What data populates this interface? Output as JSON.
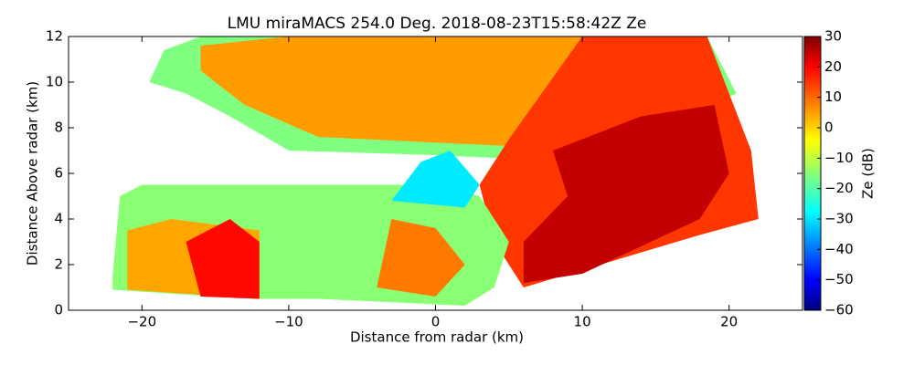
{
  "chart_data": {
    "type": "heatmap",
    "title": "LMU miraMACS 254.0 Deg. 2018-08-23T15:58:42Z  Ze",
    "x_label": "Distance from radar (km)",
    "y_label": "Distance Above radar  (km)",
    "colorbar_label": "Ze (dB)",
    "colormap": "jet",
    "xlim": [
      -25,
      25
    ],
    "xticks": [
      {
        "value": -20,
        "label": "−20"
      },
      {
        "value": -10,
        "label": "−10"
      },
      0,
      10,
      20
    ],
    "ylim": [
      0,
      12
    ],
    "yticks": [
      0,
      2,
      4,
      6,
      8,
      10,
      12
    ],
    "clim": [
      -60,
      30
    ],
    "cticks": [
      {
        "value": -60,
        "label": "−60"
      },
      {
        "value": -50,
        "label": "−50"
      },
      {
        "value": -40,
        "label": "−40"
      },
      {
        "value": -30,
        "label": "−30"
      },
      {
        "value": -20,
        "label": "−20"
      },
      {
        "value": -10,
        "label": "−10"
      },
      0,
      10,
      20,
      30
    ],
    "regions": [
      {
        "value": -15,
        "points": [
          [
            -19.5,
            10
          ],
          [
            -18.5,
            11.4
          ],
          [
            -16,
            12
          ],
          [
            18.5,
            12
          ],
          [
            20.5,
            9.5
          ],
          [
            10,
            6.5
          ],
          [
            0,
            6.8
          ],
          [
            -10,
            7
          ],
          [
            -14,
            8.5
          ],
          [
            -17,
            9.5
          ]
        ]
      },
      {
        "value": 5,
        "points": [
          [
            -16,
            11.6
          ],
          [
            -10,
            12
          ],
          [
            16,
            12
          ],
          [
            14,
            8
          ],
          [
            5,
            7.2
          ],
          [
            -8,
            7.6
          ],
          [
            -13,
            9
          ],
          [
            -16,
            10.5
          ]
        ]
      },
      {
        "value": 14,
        "points": [
          [
            5,
            7.5
          ],
          [
            10,
            12
          ],
          [
            18.5,
            12
          ],
          [
            21.5,
            7
          ],
          [
            22,
            4
          ],
          [
            18,
            3.3
          ],
          [
            6,
            1
          ],
          [
            4,
            3
          ],
          [
            3,
            5.5
          ]
        ]
      },
      {
        "value": 24,
        "points": [
          [
            8,
            7
          ],
          [
            14,
            8.5
          ],
          [
            19,
            9
          ],
          [
            20,
            6
          ],
          [
            18,
            4
          ],
          [
            10,
            1.6
          ],
          [
            6,
            1.2
          ],
          [
            6,
            3
          ],
          [
            9,
            5
          ]
        ]
      },
      {
        "value": -14,
        "points": [
          [
            -22,
            1.5
          ],
          [
            -21.5,
            5
          ],
          [
            -20,
            5.5
          ],
          [
            -5,
            5.5
          ],
          [
            0,
            5.5
          ],
          [
            3,
            5
          ],
          [
            5,
            3
          ],
          [
            4,
            1
          ],
          [
            2,
            0.2
          ],
          [
            -8,
            0.5
          ],
          [
            -12,
            0.5
          ],
          [
            -15,
            0.6
          ],
          [
            -22,
            0.9
          ]
        ]
      },
      {
        "value": 4,
        "points": [
          [
            -21,
            1.0
          ],
          [
            -21,
            3.5
          ],
          [
            -18,
            4
          ],
          [
            -12,
            3.5
          ],
          [
            -12,
            0.5
          ],
          [
            -21,
            0.9
          ]
        ]
      },
      {
        "value": 18,
        "points": [
          [
            -16,
            0.6
          ],
          [
            -17,
            3
          ],
          [
            -14,
            4
          ],
          [
            -12,
            3
          ],
          [
            -12,
            0.5
          ]
        ]
      },
      {
        "value": -28,
        "points": [
          [
            -3,
            4.8
          ],
          [
            2,
            4.5
          ],
          [
            3,
            5.5
          ],
          [
            1,
            7
          ],
          [
            -1,
            6.5
          ]
        ]
      },
      {
        "value": 8,
        "points": [
          [
            -4,
            1
          ],
          [
            -3,
            4
          ],
          [
            0,
            3.6
          ],
          [
            2,
            2
          ],
          [
            0,
            0.6
          ]
        ]
      }
    ]
  }
}
